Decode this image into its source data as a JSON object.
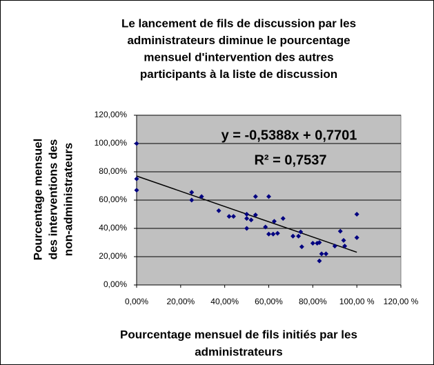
{
  "chart_data": {
    "type": "scatter",
    "title": [
      "Le lancement de fils de discussion par les",
      "administrateurs diminue le pourcentage",
      "mensuel d'intervention des autres",
      "participants à la liste de discussion"
    ],
    "xlabel": [
      "Pourcentage mensuel de fils initiés par les",
      "administrateurs"
    ],
    "ylabel": [
      "Pourcentage mensuel",
      "des interventions des",
      "non-administrateurs"
    ],
    "x": [
      0,
      0,
      0,
      0.25,
      0.25,
      0.295,
      0.373,
      0.42,
      0.44,
      0.5,
      0.5,
      0.5,
      0.52,
      0.54,
      0.54,
      0.6,
      0.585,
      0.6,
      0.62,
      0.625,
      0.64,
      0.665,
      0.71,
      0.735,
      0.745,
      0.75,
      0.8,
      0.82,
      0.83,
      0.83,
      0.84,
      0.86,
      0.9,
      0.925,
      0.94,
      0.945,
      1.0,
      1.0
    ],
    "series": [
      {
        "color": "#000080",
        "values": [
          1.0,
          0.75,
          0.67,
          0.655,
          0.6,
          0.625,
          0.525,
          0.485,
          0.485,
          0.5,
          0.47,
          0.4,
          0.46,
          0.495,
          0.625,
          0.625,
          0.41,
          0.36,
          0.36,
          0.45,
          0.365,
          0.47,
          0.345,
          0.345,
          0.375,
          0.27,
          0.295,
          0.295,
          0.3,
          0.17,
          0.22,
          0.22,
          0.275,
          0.38,
          0.315,
          0.275,
          0.5,
          0.335
        ]
      }
    ],
    "trendline": {
      "slope": -0.5388,
      "intercept": 0.7701,
      "x_range": [
        0,
        1
      ],
      "color": "#000000"
    },
    "annotations": [
      "y = -0,5388x + 0,7701",
      "R² = 0,7537"
    ],
    "xlim": [
      0,
      1.2
    ],
    "ylim": [
      0,
      1.2
    ],
    "xticks": [
      {
        "value": 0,
        "label": "0,00%"
      },
      {
        "value": 0.2,
        "label": "20,00%"
      },
      {
        "value": 0.4,
        "label": "40,00%"
      },
      {
        "value": 0.6,
        "label": "60,00%"
      },
      {
        "value": 0.8,
        "label": "80,00%"
      },
      {
        "value": 1.0,
        "label": "100,00 %"
      },
      {
        "value": 1.2,
        "label": "120,00 %"
      }
    ],
    "yticks": [
      {
        "value": 0,
        "label": "0,00%"
      },
      {
        "value": 0.2,
        "label": "20,00%"
      },
      {
        "value": 0.4,
        "label": "40,00%"
      },
      {
        "value": 0.6,
        "label": "60,00%"
      },
      {
        "value": 0.8,
        "label": "80,00%"
      },
      {
        "value": 1.0,
        "label": "100,00%"
      },
      {
        "value": 1.2,
        "label": "120,00%"
      }
    ],
    "grid": true,
    "plot_background": "#c0c0c0"
  }
}
